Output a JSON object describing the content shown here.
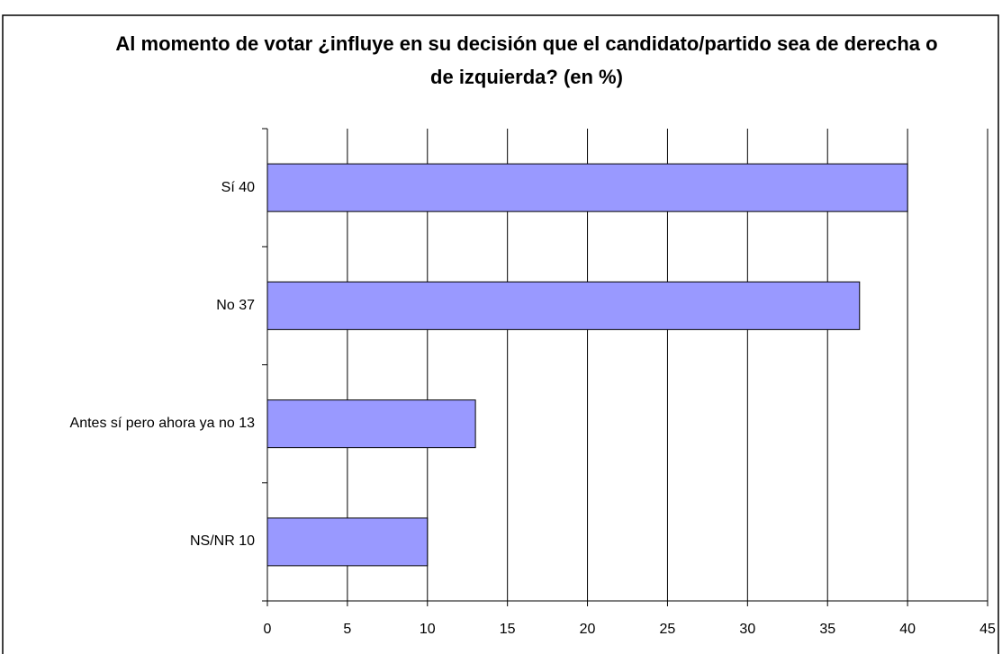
{
  "chart_data": {
    "type": "bar",
    "orientation": "horizontal",
    "title": "Al momento de votar ¿influye en su decisión que el candidato/partido sea de derecha o de izquierda? (en %)",
    "categories": [
      "Sí 40",
      "No 37",
      "Antes sí pero ahora ya no 13",
      "NS/NR 10"
    ],
    "values": [
      40,
      37,
      13,
      10
    ],
    "color": "#9999ff",
    "xlim": [
      0,
      45
    ],
    "xticks": [
      0,
      5,
      10,
      15,
      20,
      25,
      30,
      35,
      40,
      45
    ],
    "grid": true
  }
}
